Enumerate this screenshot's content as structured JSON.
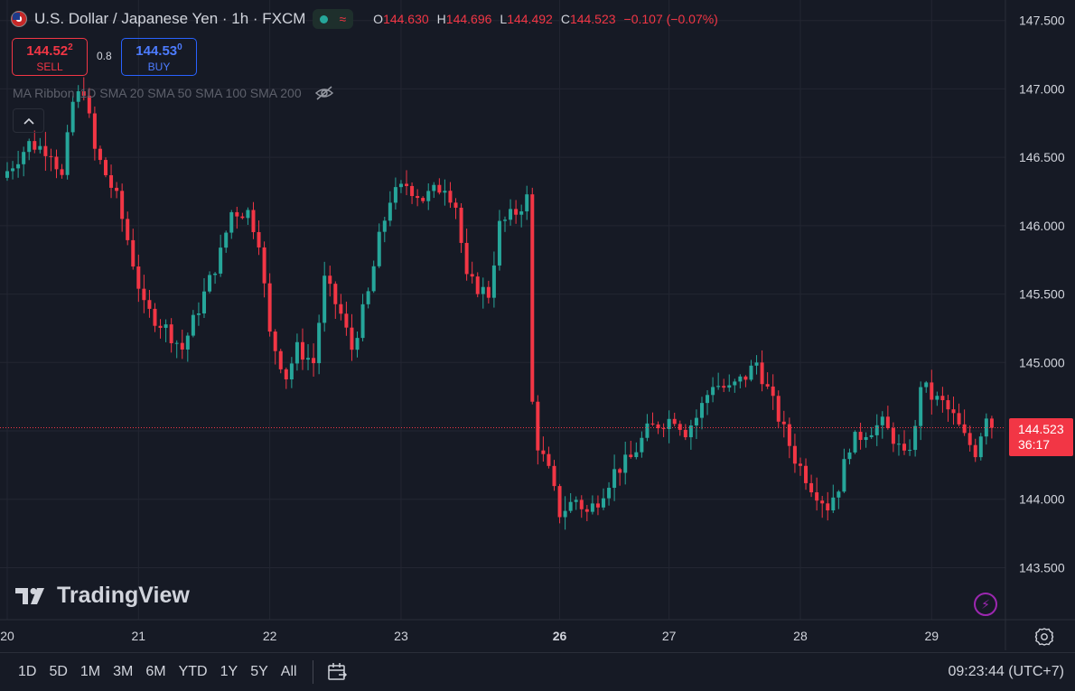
{
  "header": {
    "symbol_title": "U.S. Dollar / Japanese Yen · 1h · FXCM",
    "ohlc": [
      {
        "key": "O",
        "value": "144.630"
      },
      {
        "key": "H",
        "value": "144.696"
      },
      {
        "key": "L",
        "value": "144.492"
      },
      {
        "key": "C",
        "value": "144.523"
      }
    ],
    "change": "−0.107 (−0.07%)",
    "status_dot_color": "#26a69a"
  },
  "trade": {
    "sell_price": "144.52",
    "sell_price_sup": "2",
    "sell_label": "SELL",
    "spread": "0.8",
    "buy_price": "144.53",
    "buy_price_sup": "0",
    "buy_label": "BUY"
  },
  "indicator": {
    "name": "MA Ribbon",
    "params": "1D SMA 20 SMA 50 SMA 100 SMA 200"
  },
  "branding": {
    "logo_text": "TradingView"
  },
  "price_tag": {
    "price": "144.523",
    "countdown": "36:17"
  },
  "colors": {
    "up": "#26a69a",
    "down": "#f23645",
    "background": "#161a25",
    "grid": "#232632",
    "accent": "#2962ff"
  },
  "bottom_bar": {
    "ranges": [
      "1D",
      "5D",
      "1M",
      "3M",
      "6M",
      "YTD",
      "1Y",
      "5Y",
      "All"
    ],
    "clock": "09:23:44 (UTC+7)"
  },
  "chart_data": {
    "type": "candlestick",
    "y_ticks": [
      "147.500",
      "147.000",
      "146.500",
      "146.000",
      "145.500",
      "145.000",
      "144.500",
      "144.000",
      "143.500"
    ],
    "ylim": [
      143.12,
      147.65
    ],
    "x_ticks": [
      {
        "label": "20",
        "index": 0,
        "bold": false
      },
      {
        "label": "21",
        "index": 24,
        "bold": false
      },
      {
        "label": "22",
        "index": 48,
        "bold": false
      },
      {
        "label": "23",
        "index": 72,
        "bold": false
      },
      {
        "label": "26",
        "index": 101,
        "bold": true
      },
      {
        "label": "27",
        "index": 121,
        "bold": false
      },
      {
        "label": "28",
        "index": 145,
        "bold": false
      },
      {
        "label": "29",
        "index": 169,
        "bold": false
      }
    ],
    "last_price": 144.523,
    "waypoints": [
      [
        0,
        146.4
      ],
      [
        4,
        146.6
      ],
      [
        8,
        146.55
      ],
      [
        10,
        146.35
      ],
      [
        12,
        146.9
      ],
      [
        14,
        147.0
      ],
      [
        16,
        146.55
      ],
      [
        20,
        146.2
      ],
      [
        22,
        145.9
      ],
      [
        25,
        145.4
      ],
      [
        29,
        145.25
      ],
      [
        32,
        145.1
      ],
      [
        36,
        145.5
      ],
      [
        39,
        145.8
      ],
      [
        41,
        146.1
      ],
      [
        44,
        146.1
      ],
      [
        46,
        145.9
      ],
      [
        48,
        145.2
      ],
      [
        51,
        144.9
      ],
      [
        53,
        145.1
      ],
      [
        56,
        145.0
      ],
      [
        58,
        145.6
      ],
      [
        61,
        145.35
      ],
      [
        63,
        145.1
      ],
      [
        66,
        145.5
      ],
      [
        68,
        145.9
      ],
      [
        70,
        146.2
      ],
      [
        73,
        146.3
      ],
      [
        76,
        146.2
      ],
      [
        80,
        146.3
      ],
      [
        82,
        146.15
      ],
      [
        84,
        145.6
      ],
      [
        86,
        145.55
      ],
      [
        88,
        145.5
      ],
      [
        90,
        146.0
      ],
      [
        93,
        146.1
      ],
      [
        95,
        146.2
      ],
      [
        96,
        144.7
      ],
      [
        97,
        144.4
      ],
      [
        99,
        144.2
      ],
      [
        101,
        143.9
      ],
      [
        104,
        144.0
      ],
      [
        106,
        143.9
      ],
      [
        108,
        144.0
      ],
      [
        111,
        144.2
      ],
      [
        114,
        144.3
      ],
      [
        117,
        144.5
      ],
      [
        119,
        144.55
      ],
      [
        122,
        144.6
      ],
      [
        124,
        144.5
      ],
      [
        126,
        144.6
      ],
      [
        129,
        144.85
      ],
      [
        132,
        144.8
      ],
      [
        135,
        144.9
      ],
      [
        137,
        145.0
      ],
      [
        139,
        144.8
      ],
      [
        141,
        144.6
      ],
      [
        144,
        144.3
      ],
      [
        147,
        144.1
      ],
      [
        150,
        143.95
      ],
      [
        152,
        144.1
      ],
      [
        154,
        144.4
      ],
      [
        157,
        144.5
      ],
      [
        160,
        144.55
      ],
      [
        162,
        144.45
      ],
      [
        164,
        144.3
      ],
      [
        166,
        144.5
      ],
      [
        167,
        144.85
      ],
      [
        169,
        144.75
      ],
      [
        171,
        144.7
      ],
      [
        173,
        144.6
      ],
      [
        175,
        144.45
      ],
      [
        177,
        144.35
      ],
      [
        179,
        144.63
      ],
      [
        180,
        144.523
      ]
    ]
  }
}
